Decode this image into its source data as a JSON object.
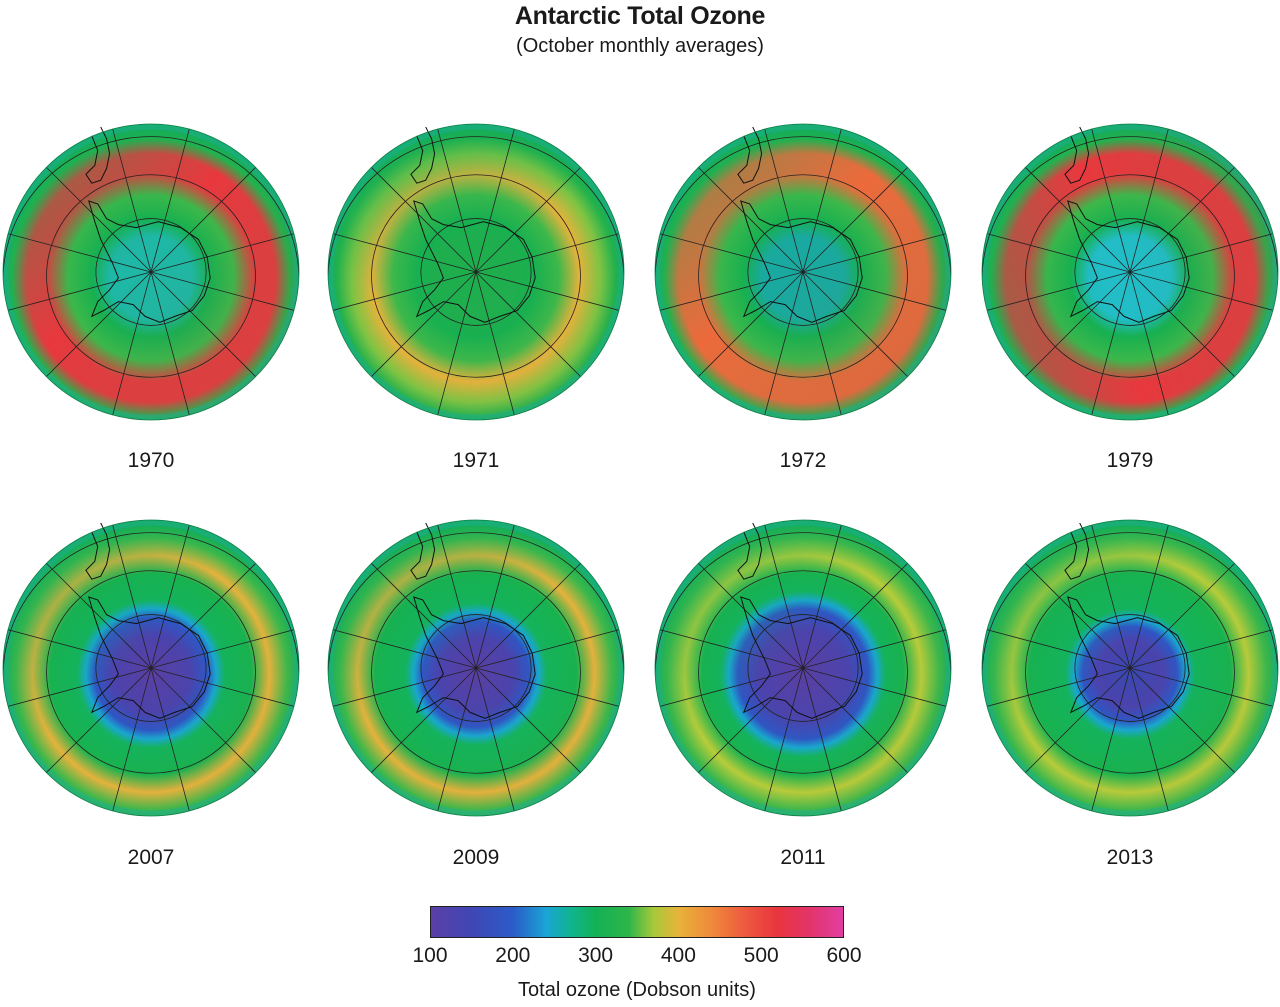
{
  "title": "Antarctic Total Ozone",
  "subtitle": "(October monthly averages)",
  "maps": [
    {
      "year": "1970",
      "hole_radius": 0.0,
      "ring_level": 0.95,
      "center": "#1fb7a6",
      "ring_phase": 0
    },
    {
      "year": "1971",
      "hole_radius": 0.0,
      "ring_level": 0.55,
      "center": "#1fae4e",
      "ring_phase": 20
    },
    {
      "year": "1972",
      "hole_radius": 0.0,
      "ring_level": 0.75,
      "center": "#1aa9a0",
      "ring_phase": 0
    },
    {
      "year": "1979",
      "hole_radius": 0.0,
      "ring_level": 0.85,
      "center": "#22bdc8",
      "ring_phase": -60
    },
    {
      "year": "2007",
      "hole_radius": 0.38,
      "ring_level": 0.45,
      "center": "#5a3fa3",
      "ring_phase": 0
    },
    {
      "year": "2009",
      "hole_radius": 0.36,
      "ring_level": 0.5,
      "center": "#5a3fa3",
      "ring_phase": 10
    },
    {
      "year": "2011",
      "hole_radius": 0.44,
      "ring_level": 0.3,
      "center": "#5a3fa3",
      "ring_phase": 0
    },
    {
      "year": "2013",
      "hole_radius": 0.32,
      "ring_level": 0.35,
      "center": "#3a47b0",
      "ring_phase": 0
    }
  ],
  "colorbar": {
    "ticks": [
      "100",
      "200",
      "300",
      "400",
      "500",
      "600"
    ],
    "min": 100,
    "max": 600,
    "label": "Total ozone (Dobson units)"
  }
}
